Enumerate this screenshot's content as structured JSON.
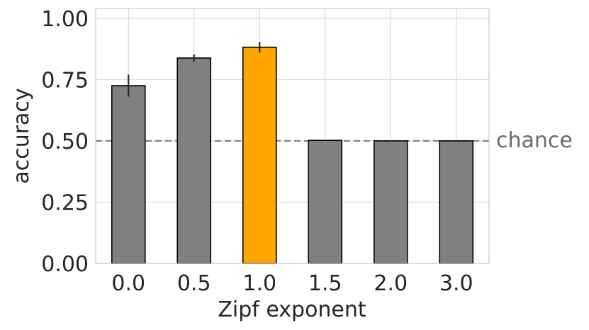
{
  "chart_data": {
    "type": "bar",
    "title": "",
    "xlabel": "Zipf exponent",
    "ylabel": "accuracy",
    "categories": [
      "0.0",
      "0.5",
      "1.0",
      "1.5",
      "2.0",
      "3.0"
    ],
    "values": [
      0.725,
      0.838,
      0.882,
      0.502,
      0.5,
      0.5
    ],
    "error": [
      0.045,
      0.015,
      0.022,
      0.002,
      0.001,
      0.001
    ],
    "highlight_index": 2,
    "ylim": [
      0,
      1.04
    ],
    "yticks": [
      "0.00",
      "0.25",
      "0.50",
      "0.75",
      "1.00"
    ],
    "ytick_values": [
      0,
      0.25,
      0.5,
      0.75,
      1.0
    ],
    "grid": true,
    "reference_line": {
      "value": 0.5,
      "label": "chance",
      "style": "dashed"
    },
    "colors": {
      "bar": "#808080",
      "highlight": "#FFA500",
      "edge": "#000000",
      "grid": "#d9d9d9",
      "reference": "#808080",
      "reference_label": "#6b6b6b",
      "text": "#262626"
    }
  }
}
